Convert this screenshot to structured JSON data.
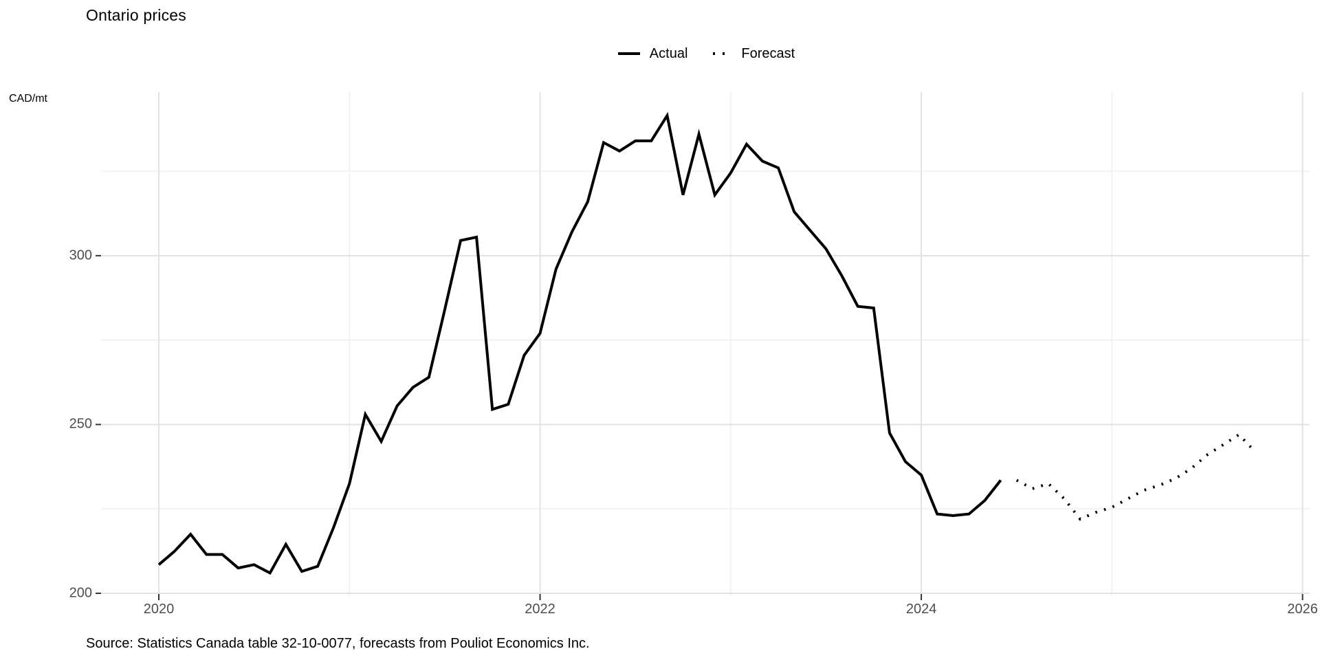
{
  "title": "Ontario prices",
  "y_axis_unit": "CAD/mt",
  "caption": "Source: Statistics Canada table 32-10-0077, forecasts from Pouliot Economics Inc.",
  "legend": {
    "actual_label": "Actual",
    "forecast_label": "Forecast"
  },
  "colors": {
    "line": "#000000",
    "tick_label": "#4d4d4d",
    "grid_major": "#e2e2e2",
    "grid_minor": "#efefef",
    "axis_tick": "#333333",
    "background": "#ffffff"
  },
  "chart_data": {
    "type": "line",
    "title": "Ontario prices",
    "xlabel": "",
    "ylabel": "CAD/mt",
    "frequency": "monthly",
    "x_major_ticks": [
      2020,
      2022,
      2024,
      2026
    ],
    "x_major_tick_labels": [
      "2020",
      "2022",
      "2024",
      "2026"
    ],
    "x_minor_ticks": [
      2021,
      2023,
      2025
    ],
    "y_major_ticks": [
      200,
      250,
      300
    ],
    "y_major_tick_labels": [
      "200",
      "250",
      "300"
    ],
    "y_minor_ticks": [
      225,
      275,
      325
    ],
    "xlim": [
      2019.7,
      2026.05
    ],
    "ylim": [
      199,
      349
    ],
    "grid": true,
    "legend_position": "top-center",
    "series": [
      {
        "name": "Actual",
        "style": "solid",
        "start_month": "2020-01",
        "values": [
          208.5,
          212.5,
          217.5,
          211.5,
          211.5,
          207.5,
          208.5,
          206,
          214.5,
          206.5,
          208,
          219.5,
          232.5,
          253,
          245,
          255.5,
          261,
          264,
          284,
          304.5,
          305.5,
          254.5,
          256,
          270.5,
          277,
          296,
          307,
          316,
          333.5,
          331,
          334,
          334,
          341.5,
          318,
          336,
          318,
          324.5,
          333,
          328,
          326,
          313,
          307.5,
          302,
          294,
          285,
          284.5,
          247.5,
          239,
          235,
          223.5,
          223,
          223.5,
          227.5,
          233.5
        ]
      },
      {
        "name": "Forecast",
        "style": "dotted",
        "start_month": "2024-07",
        "values": [
          233.5,
          231,
          232.5,
          228,
          222,
          224,
          225.5,
          228,
          230.5,
          232,
          234,
          237,
          241,
          244,
          247,
          242
        ]
      }
    ]
  }
}
